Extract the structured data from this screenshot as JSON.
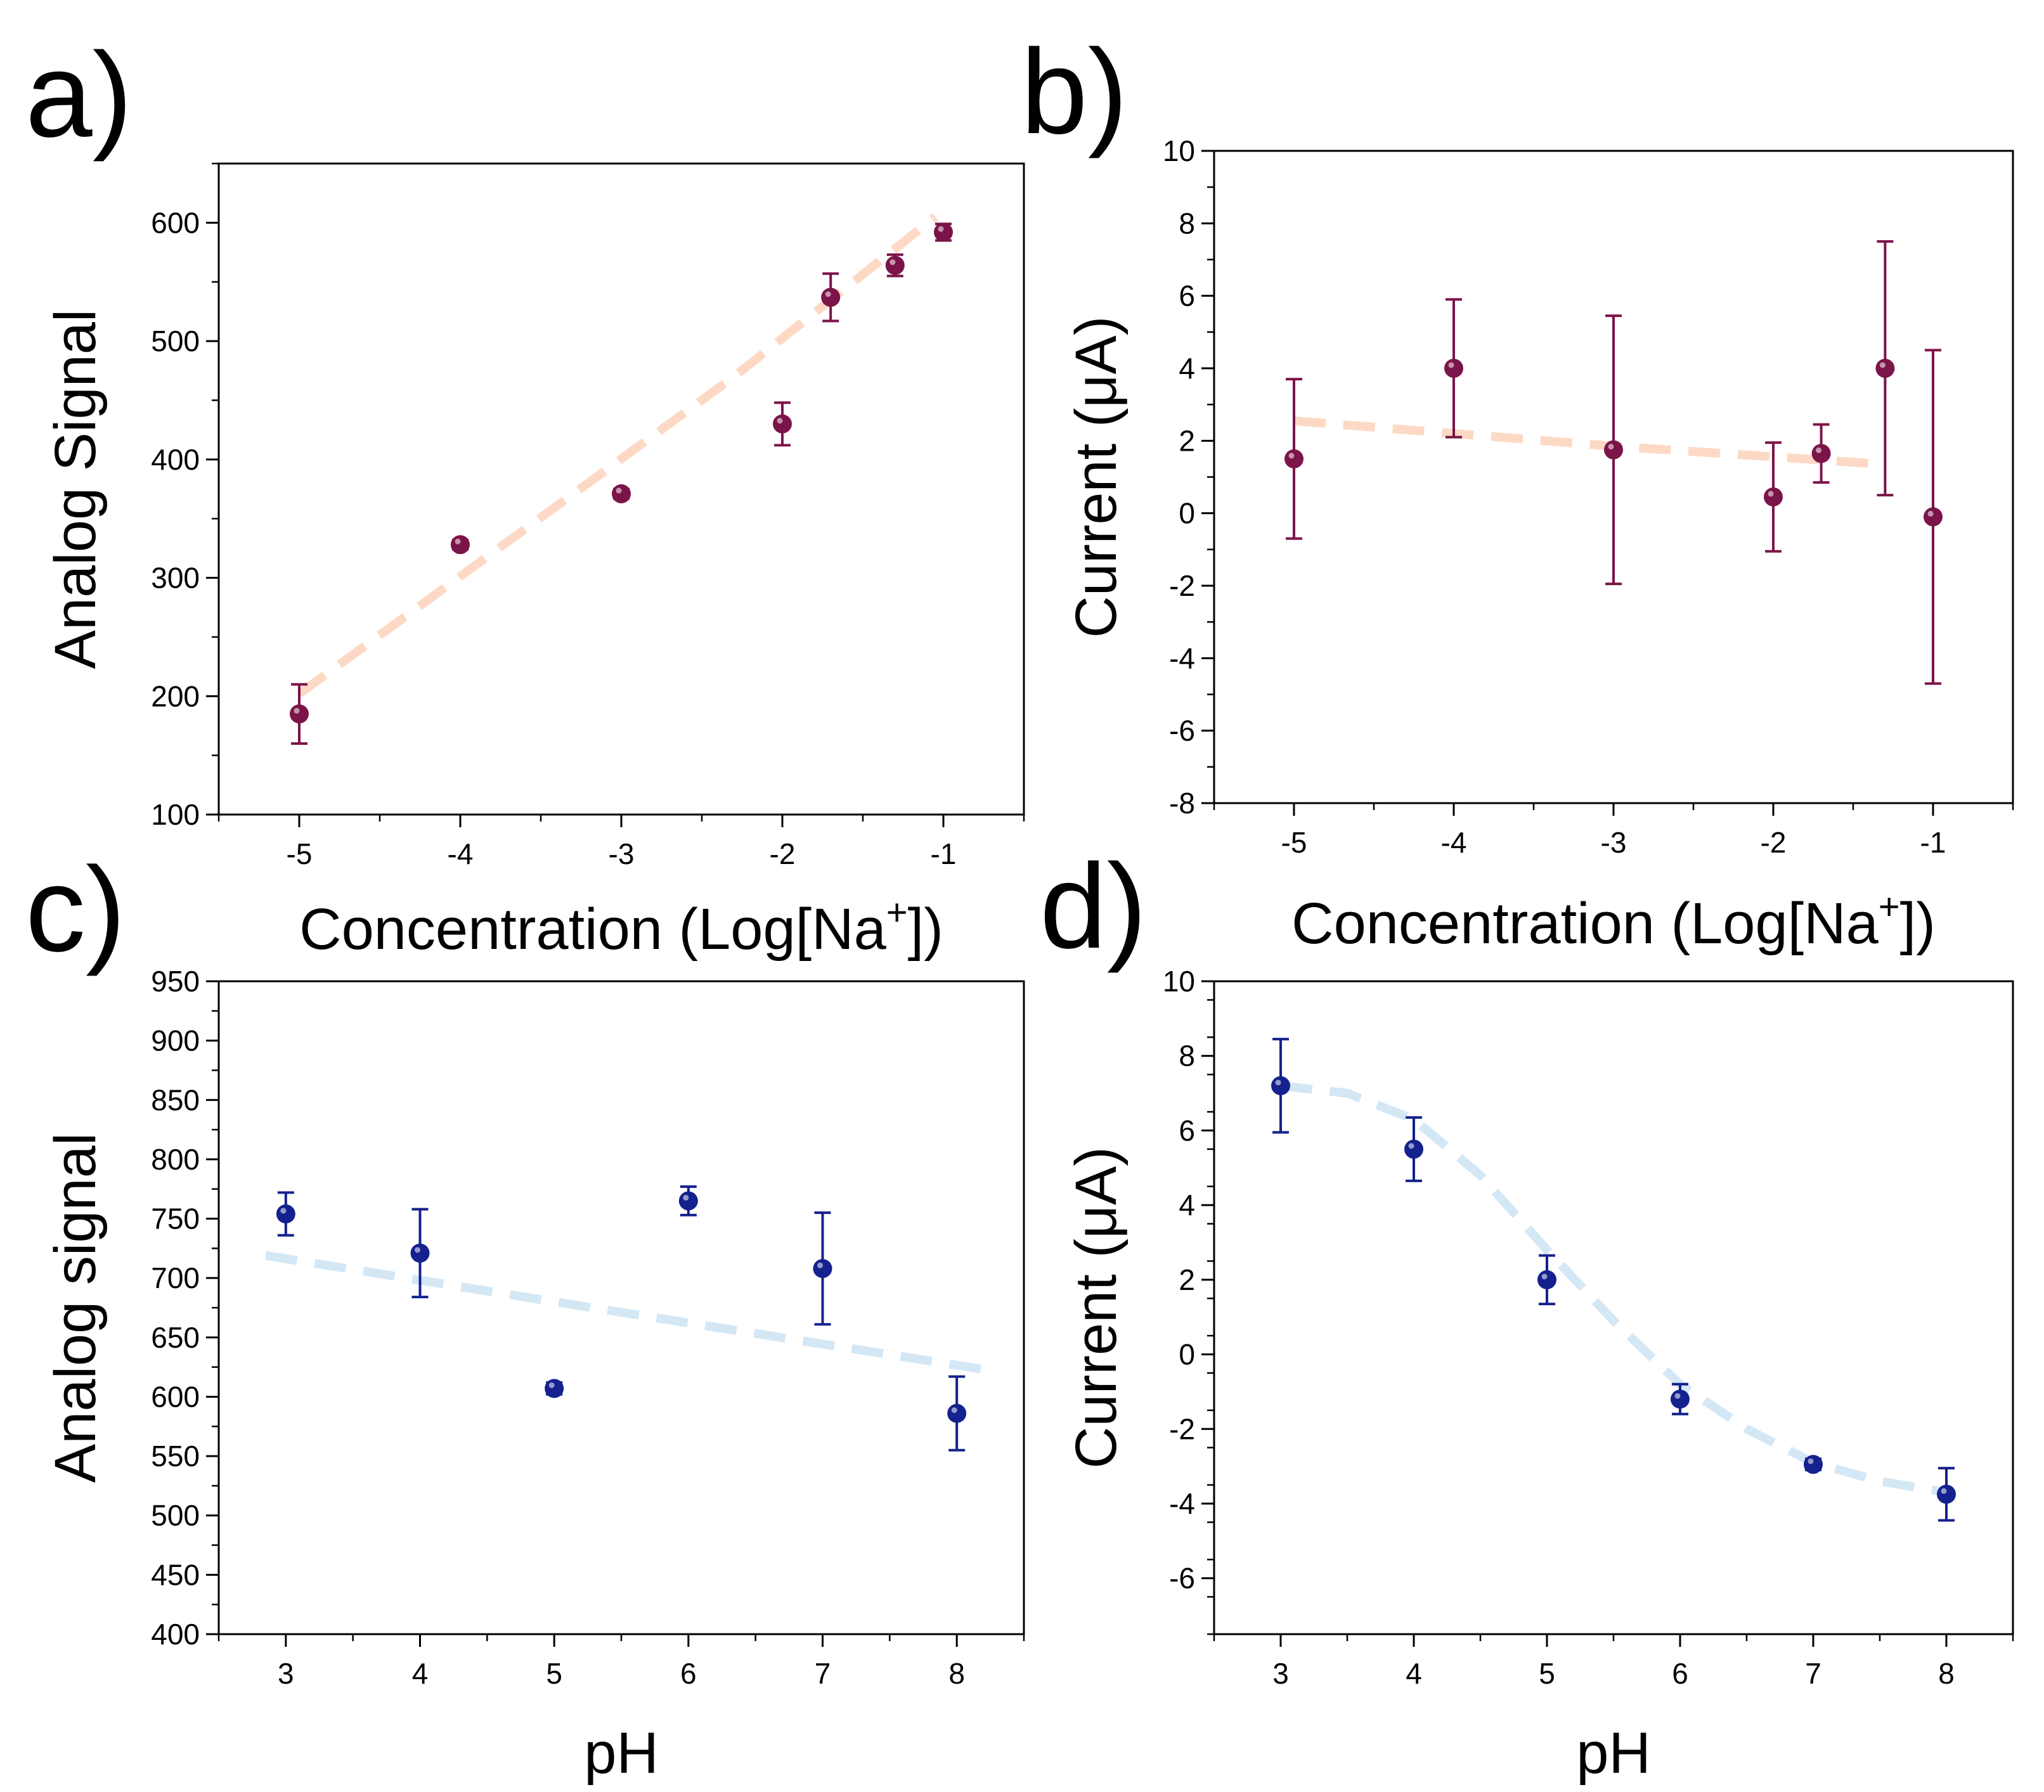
{
  "chart_data": [
    {
      "panel": "a)",
      "type": "scatter",
      "xlabel": {
        "prefix": "Concentration (Log[Na",
        "sup": "+",
        "suffix": "])"
      },
      "ylabel": "Analog Signal",
      "xlim": [
        -5.5,
        -0.5
      ],
      "ylim": [
        100,
        650
      ],
      "xticks": [
        -5,
        -4,
        -3,
        -2,
        -1
      ],
      "yticks": [
        100,
        200,
        300,
        400,
        500,
        600
      ],
      "marker_color": "#7b1449",
      "fit_color": "#fdd9c5",
      "points": [
        {
          "x": -5,
          "y": 185,
          "err": 25
        },
        {
          "x": -4,
          "y": 328,
          "err": 4
        },
        {
          "x": -3,
          "y": 371,
          "err": 4
        },
        {
          "x": -2,
          "y": 430,
          "err": 18
        },
        {
          "x": -1.7,
          "y": 537,
          "err": 20
        },
        {
          "x": -1.3,
          "y": 564,
          "err": 9
        },
        {
          "x": -1,
          "y": 592,
          "err": 7
        }
      ],
      "fit": [
        [
          -5,
          202
        ],
        [
          -2.3,
          470
        ],
        [
          -1.05,
          605
        ]
      ]
    },
    {
      "panel": "b)",
      "type": "scatter",
      "xlabel": {
        "prefix": "Concentration (Log[Na",
        "sup": "+",
        "suffix": "])"
      },
      "ylabel": "Current (μA)",
      "xlim": [
        -5.5,
        -0.5
      ],
      "ylim": [
        -8,
        10
      ],
      "xticks": [
        -5,
        -4,
        -3,
        -2,
        -1
      ],
      "yticks": [
        -8,
        -6,
        -4,
        -2,
        0,
        2,
        4,
        6,
        8,
        10
      ],
      "marker_color": "#7b1449",
      "fit_color": "#fdd9c5",
      "points": [
        {
          "x": -5,
          "y": 1.5,
          "err": 2.2
        },
        {
          "x": -4,
          "y": 4.0,
          "err": 1.9
        },
        {
          "x": -3,
          "y": 1.75,
          "err": 3.7
        },
        {
          "x": -2,
          "y": 0.45,
          "err": 1.5
        },
        {
          "x": -1.7,
          "y": 1.65,
          "err": 0.8
        },
        {
          "x": -1.3,
          "y": 4.0,
          "err": 3.5
        },
        {
          "x": -1,
          "y": -0.1,
          "err": 4.6
        }
      ],
      "fit": [
        [
          -5,
          2.55
        ],
        [
          -3,
          1.85
        ],
        [
          -1.3,
          1.35
        ]
      ]
    },
    {
      "panel": "c)",
      "type": "scatter",
      "xlabel": {
        "prefix": "pH",
        "sup": "",
        "suffix": ""
      },
      "ylabel": "Analog signal",
      "xlim": [
        2.5,
        8.5
      ],
      "ylim": [
        400,
        950
      ],
      "xticks": [
        3,
        4,
        5,
        6,
        7,
        8
      ],
      "yticks": [
        400,
        450,
        500,
        550,
        600,
        650,
        700,
        750,
        800,
        850,
        900,
        950
      ],
      "marker_color": "#14218e",
      "fit_color": "#d4e7f5",
      "points": [
        {
          "x": 3,
          "y": 754,
          "err": 18
        },
        {
          "x": 4,
          "y": 721,
          "err": 37
        },
        {
          "x": 5,
          "y": 607,
          "err": 5
        },
        {
          "x": 6,
          "y": 765,
          "err": 12
        },
        {
          "x": 7,
          "y": 708,
          "err": 47
        },
        {
          "x": 8,
          "y": 586,
          "err": 31
        }
      ],
      "fit": [
        [
          2.85,
          719
        ],
        [
          5,
          680
        ],
        [
          8.2,
          623
        ]
      ]
    },
    {
      "panel": "d)",
      "type": "scatter",
      "xlabel": {
        "prefix": "pH",
        "sup": "",
        "suffix": ""
      },
      "ylabel": "Current (μA)",
      "xlim": [
        2.5,
        8.5
      ],
      "ylim": [
        -7.5,
        10
      ],
      "xticks": [
        3,
        4,
        5,
        6,
        7,
        8
      ],
      "yticks": [
        -6,
        -4,
        -2,
        0,
        2,
        4,
        6,
        8,
        10
      ],
      "marker_color": "#14218e",
      "fit_color": "#d4e7f5",
      "points": [
        {
          "x": 3,
          "y": 7.2,
          "err": 1.25
        },
        {
          "x": 4,
          "y": 5.5,
          "err": 0.85
        },
        {
          "x": 5,
          "y": 2.0,
          "err": 0.65
        },
        {
          "x": 6,
          "y": -1.2,
          "err": 0.4
        },
        {
          "x": 7,
          "y": -2.95,
          "err": 0.15
        },
        {
          "x": 8,
          "y": -3.75,
          "err": 0.7
        }
      ],
      "fit": [
        [
          3,
          7.2
        ],
        [
          3.5,
          7.0
        ],
        [
          4,
          6.3
        ],
        [
          4.5,
          4.8
        ],
        [
          5,
          2.8
        ],
        [
          5.5,
          0.9
        ],
        [
          6,
          -0.8
        ],
        [
          6.5,
          -2.0
        ],
        [
          7,
          -2.9
        ],
        [
          7.5,
          -3.4
        ],
        [
          8,
          -3.7
        ]
      ]
    }
  ]
}
